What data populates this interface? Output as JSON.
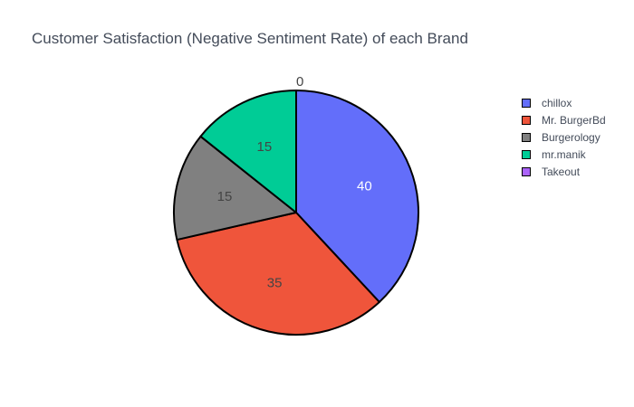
{
  "chart_data": {
    "type": "pie",
    "title": "Customer Satisfaction (Negative Sentiment Rate) of each Brand",
    "categories": [
      "chillox",
      "Mr. BurgerBd",
      "Burgerology",
      "mr.manik",
      "Takeout"
    ],
    "values": [
      40,
      35,
      15,
      15,
      0
    ],
    "labels": [
      "40",
      "35",
      "15",
      "15",
      "0"
    ],
    "colors": [
      "#636efa",
      "#ef553b",
      "#808080",
      "#00cc96",
      "#ab63fa"
    ],
    "label_colors": [
      "#ffffff",
      "#444444",
      "#444444",
      "#444444",
      "#444444"
    ],
    "legend_position": "top-right",
    "direction": "clockwise",
    "start": "top"
  }
}
